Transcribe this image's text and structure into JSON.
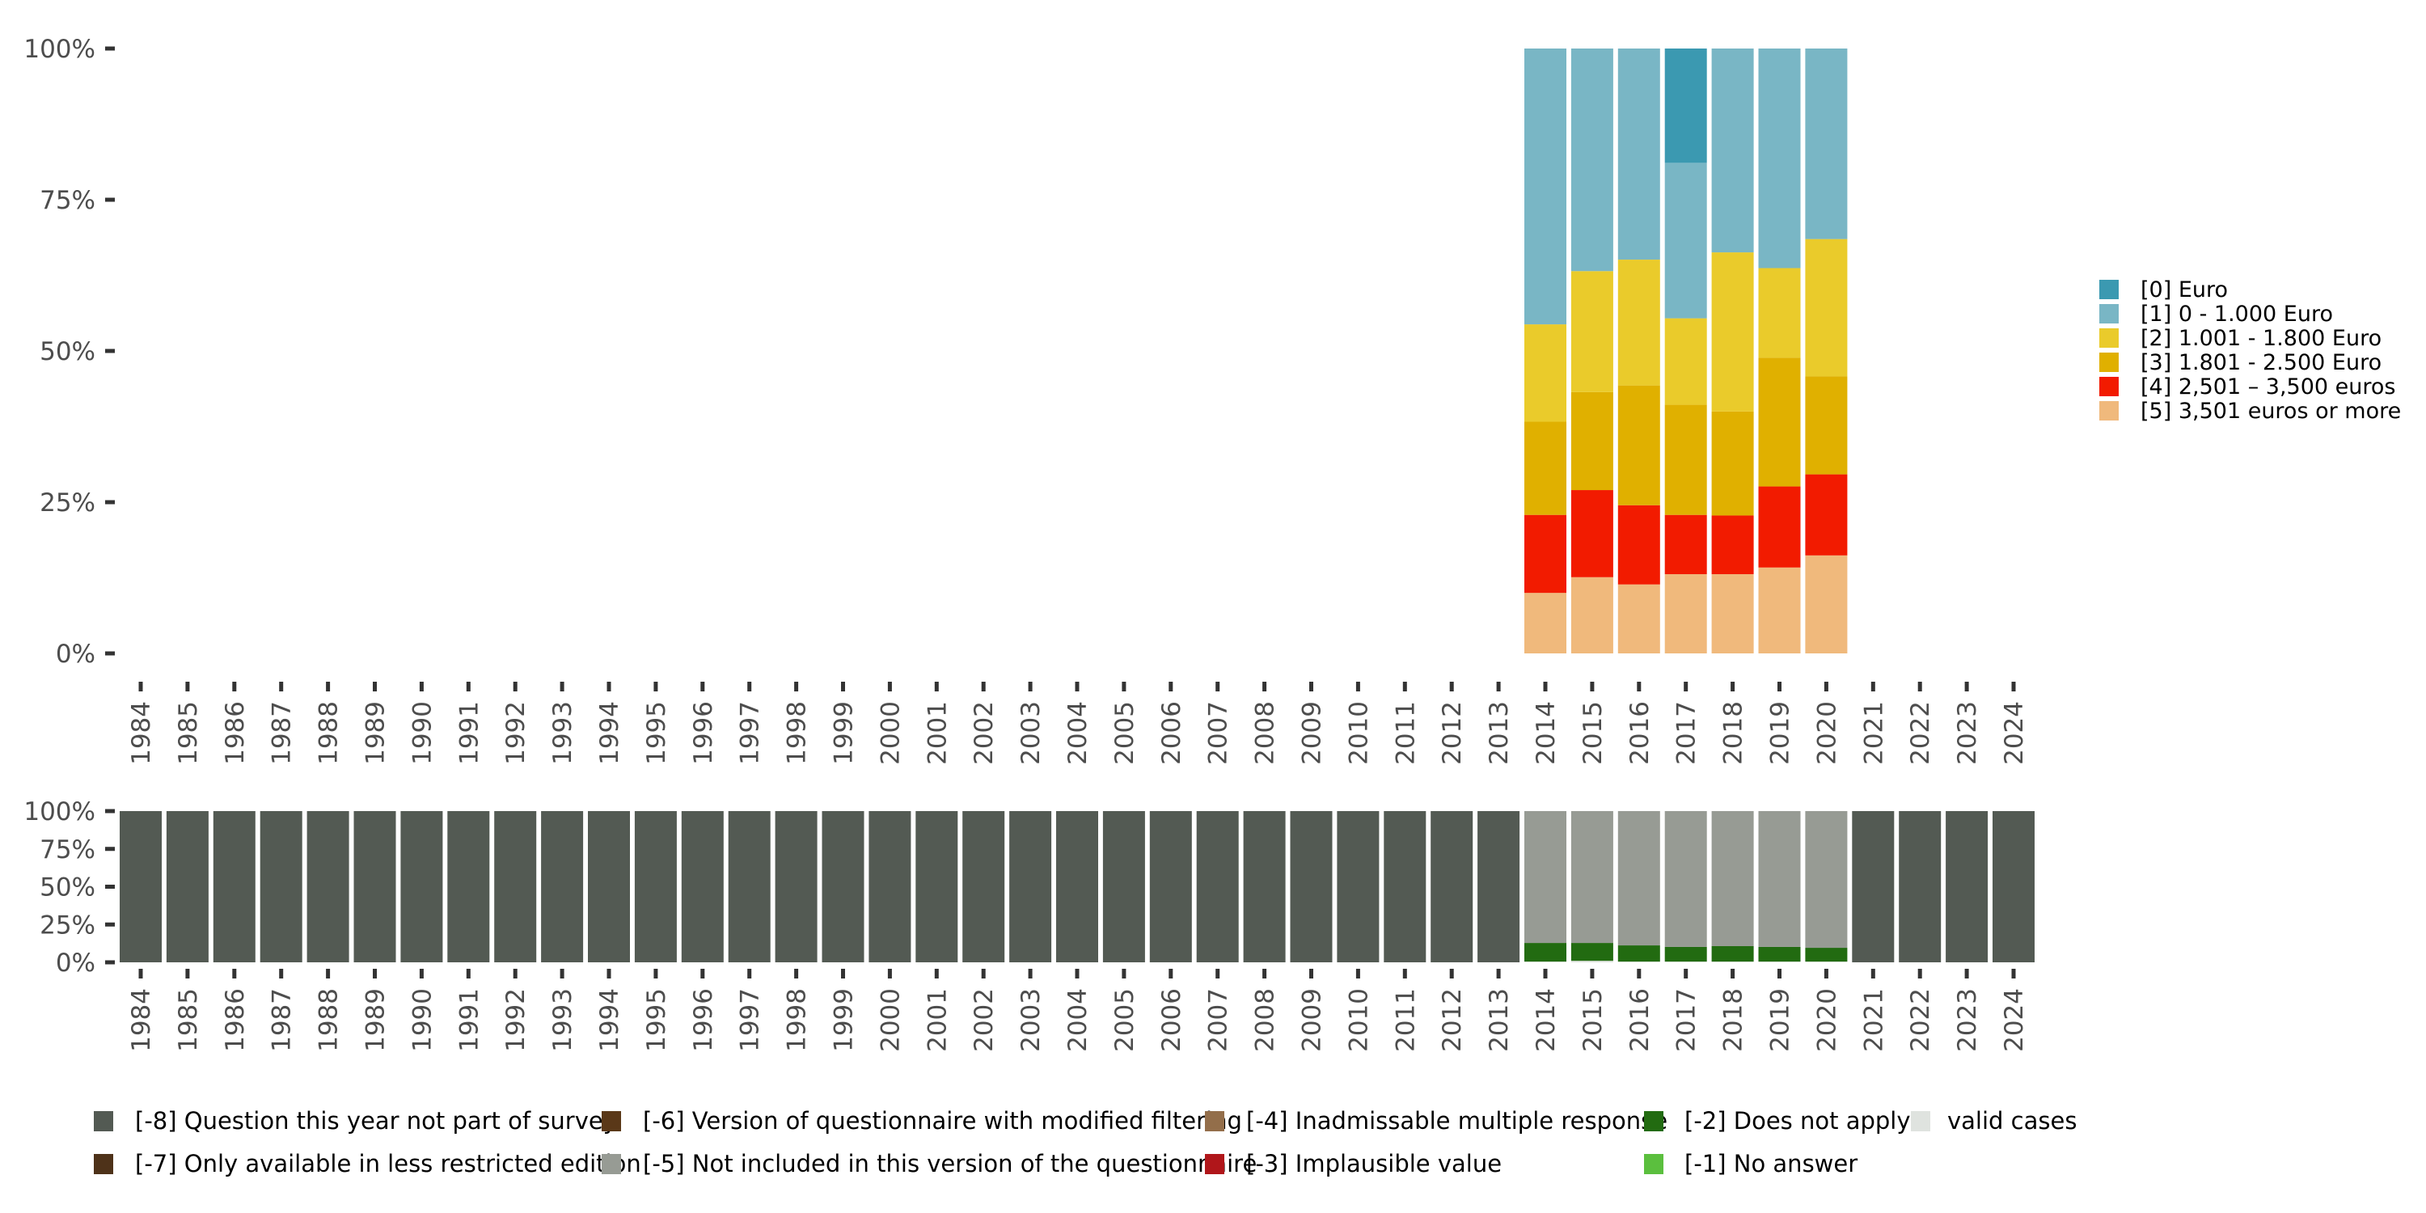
{
  "chart_data": [
    {
      "type": "bar",
      "stacked": true,
      "percent": true,
      "title": "",
      "xlabel": "",
      "ylabel": "",
      "ylim": [
        0,
        100
      ],
      "yticks": [
        "0%",
        "25%",
        "50%",
        "75%",
        "100%"
      ],
      "ytick_values": [
        0,
        25,
        50,
        75,
        100
      ],
      "categories": [
        "1984",
        "1985",
        "1986",
        "1987",
        "1988",
        "1989",
        "1990",
        "1991",
        "1992",
        "1993",
        "1994",
        "1995",
        "1996",
        "1997",
        "1998",
        "1999",
        "2000",
        "2001",
        "2002",
        "2003",
        "2004",
        "2005",
        "2006",
        "2007",
        "2008",
        "2009",
        "2010",
        "2011",
        "2012",
        "2013",
        "2014",
        "2015",
        "2016",
        "2017",
        "2018",
        "2019",
        "2020",
        "2021",
        "2022",
        "2023",
        "2024"
      ],
      "legend_position": "right",
      "series": [
        {
          "name": "[5] 3,501 euros or more",
          "color": "#f0b97c",
          "values": {
            "2014": 10.0,
            "2015": 12.6,
            "2016": 11.4,
            "2017": 13.1,
            "2018": 13.1,
            "2019": 14.2,
            "2020": 16.2
          }
        },
        {
          "name": "[4] 2,501 – 3,500 euros",
          "color": "#f21b00",
          "values": {
            "2014": 12.9,
            "2015": 14.4,
            "2016": 13.1,
            "2017": 9.8,
            "2018": 9.7,
            "2019": 13.4,
            "2020": 13.4
          }
        },
        {
          "name": "[3] 1.801 - 2.500 Euro",
          "color": "#e0b000",
          "values": {
            "2014": 15.4,
            "2015": 16.2,
            "2016": 19.8,
            "2017": 18.2,
            "2018": 17.2,
            "2019": 21.3,
            "2020": 16.2
          }
        },
        {
          "name": "[2] 1.001 - 1.800 Euro",
          "color": "#eacb2b",
          "values": {
            "2014": 16.1,
            "2015": 20.0,
            "2016": 20.8,
            "2017": 14.3,
            "2018": 26.3,
            "2019": 14.8,
            "2020": 22.7
          }
        },
        {
          "name": "[1] 0 - 1.000 Euro",
          "color": "#79b6c5",
          "values": {
            "2014": 45.6,
            "2015": 36.8,
            "2016": 34.9,
            "2017": 25.7,
            "2018": 33.7,
            "2019": 36.3,
            "2020": 31.5
          }
        },
        {
          "name": "[0] Euro",
          "color": "#3b99b1",
          "values": {
            "2014": 0,
            "2015": 0,
            "2016": 0,
            "2017": 18.9,
            "2018": 0,
            "2019": 0,
            "2020": 0
          }
        }
      ],
      "legend_order": [
        "[0] Euro",
        "[1] 0 - 1.000 Euro",
        "[2] 1.001 - 1.800 Euro",
        "[3] 1.801 - 2.500 Euro",
        "[4] 2,501 – 3,500 euros",
        "[5] 3,501 euros or more"
      ]
    },
    {
      "type": "bar",
      "stacked": true,
      "percent": true,
      "title": "",
      "xlabel": "",
      "ylabel": "",
      "ylim": [
        0,
        100
      ],
      "yticks": [
        "0%",
        "25%",
        "50%",
        "75%",
        "100%"
      ],
      "ytick_values": [
        0,
        25,
        50,
        75,
        100
      ],
      "categories": [
        "1984",
        "1985",
        "1986",
        "1987",
        "1988",
        "1989",
        "1990",
        "1991",
        "1992",
        "1993",
        "1994",
        "1995",
        "1996",
        "1997",
        "1998",
        "1999",
        "2000",
        "2001",
        "2002",
        "2003",
        "2004",
        "2005",
        "2006",
        "2007",
        "2008",
        "2009",
        "2010",
        "2011",
        "2012",
        "2013",
        "2014",
        "2015",
        "2016",
        "2017",
        "2018",
        "2019",
        "2020",
        "2021",
        "2022",
        "2023",
        "2024"
      ],
      "legend_position": "bottom",
      "series": [
        {
          "name": "valid cases",
          "color": "#dfe3df",
          "values": {
            "2014": 0.5,
            "2015": 1.0,
            "2016": 0.5,
            "2017": 0.5,
            "2018": 0.5,
            "2019": 0.5,
            "2020": 0.5
          }
        },
        {
          "name": "[-2] Does not apply",
          "color": "#226b11",
          "values": {
            "2014": 12.3,
            "2015": 11.8,
            "2016": 10.7,
            "2017": 9.7,
            "2018": 10.2,
            "2019": 9.7,
            "2020": 9.1
          }
        },
        {
          "name": "[-5] Not included in this version of the questionnaire",
          "color": "#979b94",
          "values": {
            "2014": 87.2,
            "2015": 87.2,
            "2016": 88.8,
            "2017": 89.8,
            "2018": 89.3,
            "2019": 89.8,
            "2020": 90.4
          }
        },
        {
          "name": "[-8] Question this year not part of survey",
          "color": "#535a53",
          "values": {
            "1984": 100,
            "1985": 100,
            "1986": 100,
            "1987": 100,
            "1988": 100,
            "1989": 100,
            "1990": 100,
            "1991": 100,
            "1992": 100,
            "1993": 100,
            "1994": 100,
            "1995": 100,
            "1996": 100,
            "1997": 100,
            "1998": 100,
            "1999": 100,
            "2000": 100,
            "2001": 100,
            "2002": 100,
            "2003": 100,
            "2004": 100,
            "2005": 100,
            "2006": 100,
            "2007": 100,
            "2008": 100,
            "2009": 100,
            "2010": 100,
            "2011": 100,
            "2012": 100,
            "2013": 100,
            "2021": 100,
            "2022": 100,
            "2023": 100,
            "2024": 100
          }
        }
      ],
      "legend": [
        {
          "name": "[-8] Question this year not part of survey",
          "color": "#535a53"
        },
        {
          "name": "[-7] Only available in less restricted edition",
          "color": "#4e3219"
        },
        {
          "name": "[-6] Version of questionnaire with modified filtering",
          "color": "#5a3818"
        },
        {
          "name": "[-5] Not included in this version of the questionnaire",
          "color": "#979b94"
        },
        {
          "name": "[-4] Inadmissable multiple response",
          "color": "#936e4a"
        },
        {
          "name": "[-3] Implausible value",
          "color": "#b0161a"
        },
        {
          "name": "[-2] Does not apply",
          "color": "#226b11"
        },
        {
          "name": "[-1] No answer",
          "color": "#5bbf3e"
        },
        {
          "name": "valid cases",
          "color": "#dfe3df"
        }
      ]
    }
  ]
}
